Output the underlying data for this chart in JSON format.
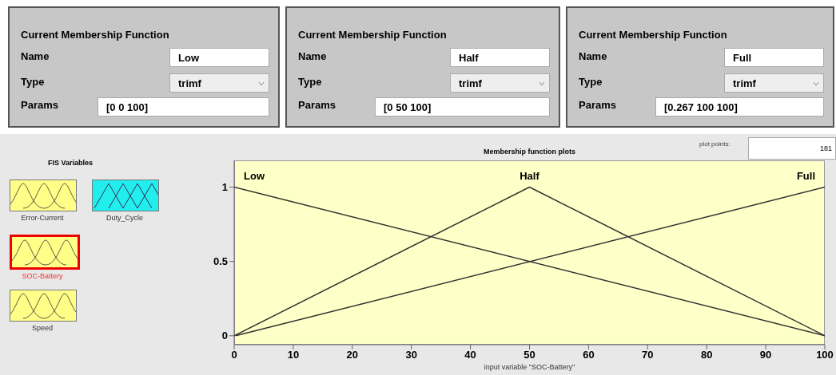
{
  "chart_data": {
    "type": "line",
    "title": "Membership function plots",
    "xlabel": "input variable \"SOC-Battery\"",
    "series": [
      {
        "name": "Low",
        "color": "#333333",
        "x": [
          0,
          100
        ],
        "values": [
          1,
          0
        ]
      },
      {
        "name": "Half",
        "color": "#333333",
        "x": [
          0,
          50,
          100
        ],
        "values": [
          0,
          1,
          0
        ]
      },
      {
        "name": "Full",
        "color": "#333333",
        "x": [
          0.267,
          100
        ],
        "values": [
          0,
          1
        ]
      }
    ],
    "xlim": [
      0,
      100
    ],
    "xticks": [
      0,
      10,
      20,
      30,
      40,
      50,
      60,
      70,
      80,
      90,
      100
    ],
    "ylim": [
      -0.06,
      1.18
    ],
    "yticks": [
      0,
      0.5,
      1
    ],
    "annotations": [
      "Current Membership Function",
      "Name",
      "Low",
      "Type",
      "trimf",
      "Params",
      "[0 0 100]",
      "Current Membership Function",
      "Name",
      "Half",
      "Type",
      "trimf",
      "Params",
      "[0 50 100]",
      "Current Membership Function",
      "Name",
      "Full",
      "Type",
      "trimf",
      "Params",
      "[0.267 100 100]",
      "FIS Variables",
      "Error-Current",
      "Duty_Cycle",
      "SOC-Battery",
      "Speed",
      "plot points:",
      "181"
    ]
  }
}
